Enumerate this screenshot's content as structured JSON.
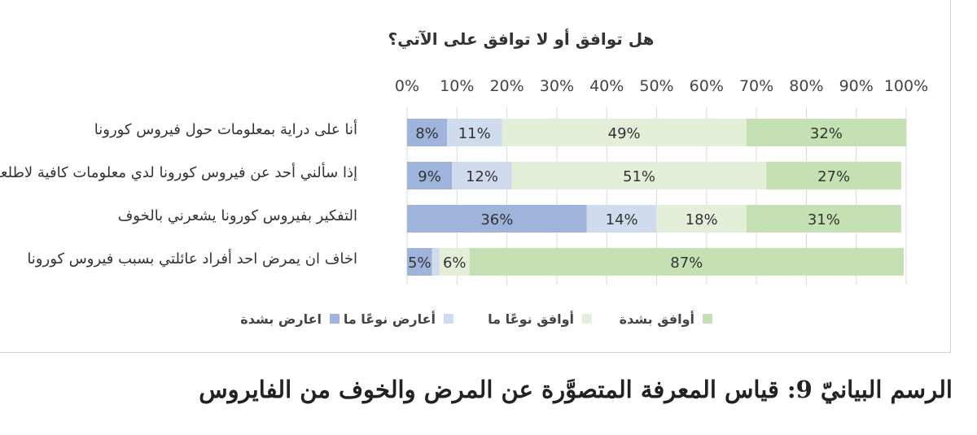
{
  "chart_data": {
    "type": "bar",
    "orientation": "horizontal",
    "stacked": true,
    "title": "هل توافق أو لا توافق على الآتي؟",
    "categories": [
      "أنا على دراية بمعلومات حول فيروس كورونا",
      "إذا سألني أحد عن فيروس كورونا لدي معلومات كافية لاطلعهم",
      "التفكير بفيروس كورونا يشعرني بالخوف",
      "اخاف ان يمرض احد أفراد عائلتي بسبب فيروس كورونا"
    ],
    "series": [
      {
        "name": "اعارض بشدة",
        "color": "#9fb4da",
        "values": [
          8,
          9,
          36,
          5
        ],
        "labels": [
          "8%",
          "9%",
          "36%",
          "5%"
        ]
      },
      {
        "name": "أعارض نوعًا ما",
        "color": "#d0dbee",
        "values": [
          11,
          12,
          14,
          1.5
        ],
        "labels": [
          "11%",
          "12%",
          "14%",
          ""
        ]
      },
      {
        "name": "أوافق نوعًا ما",
        "color": "#e3efd9",
        "values": [
          49,
          51,
          18,
          6
        ],
        "labels": [
          "49%",
          "51%",
          "18%",
          "6%"
        ]
      },
      {
        "name": "أوافق بشدة",
        "color": "#c5e0b3",
        "values": [
          32,
          27,
          31,
          87
        ],
        "labels": [
          "32%",
          "27%",
          "31%",
          "87%"
        ]
      }
    ],
    "xlim": [
      0,
      100
    ],
    "x_ticks": [
      "0%",
      "10%",
      "20%",
      "30%",
      "40%",
      "50%",
      "60%",
      "70%",
      "80%",
      "90%",
      "100%"
    ],
    "grid": true,
    "x_axis_position": "top",
    "legend_position": "bottom"
  },
  "caption": "الرسم البيانيّ 9: قياس المعرفة المتصوَّرة عن المرض والخوف من الفايروس"
}
